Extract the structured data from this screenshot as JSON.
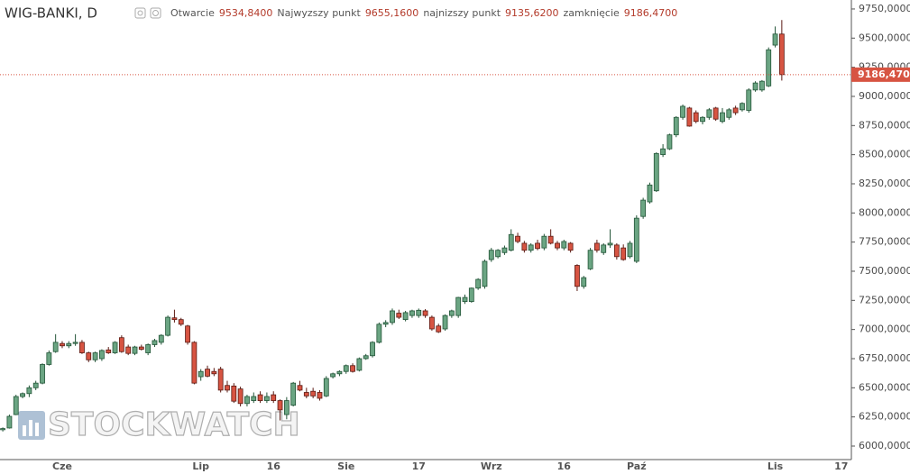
{
  "header": {
    "title": "WIG-BANKI, D",
    "items": [
      {
        "label": "Otwarcie",
        "value": "9534,8400"
      },
      {
        "label": "Najwyzszy punkt",
        "value": "9655,1600"
      },
      {
        "label": "najnizszy punkt",
        "value": "9135,6200"
      },
      {
        "label": "zamknięcie",
        "value": "9186,4700"
      }
    ]
  },
  "watermark": "STOCKWATCH",
  "chart_data": {
    "type": "candlestick",
    "up_color": "#6ba583",
    "up_border": "#225437",
    "down_color": "#d75442",
    "down_border": "#5b1a13",
    "grid": false,
    "categories": [
      null,
      null,
      null,
      null,
      null,
      null,
      null,
      null,
      null,
      "Cze",
      null,
      null,
      null,
      null,
      null,
      null,
      null,
      null,
      null,
      null,
      null,
      null,
      null,
      null,
      null,
      null,
      null,
      null,
      null,
      null,
      "Lip",
      null,
      null,
      null,
      null,
      null,
      null,
      null,
      null,
      null,
      null,
      "16",
      null,
      null,
      null,
      null,
      null,
      null,
      null,
      null,
      null,
      null,
      "Sie",
      null,
      null,
      null,
      null,
      null,
      null,
      null,
      null,
      null,
      null,
      "17",
      null,
      null,
      null,
      null,
      null,
      null,
      null,
      null,
      null,
      null,
      "Wrz",
      null,
      null,
      null,
      null,
      null,
      null,
      null,
      null,
      null,
      null,
      "16",
      null,
      null,
      null,
      null,
      null,
      null,
      null,
      null,
      null,
      null,
      "Paź",
      null,
      null,
      null,
      null,
      null,
      null,
      null,
      null,
      null,
      null,
      null,
      null,
      null,
      null,
      null,
      null,
      null,
      null,
      null,
      null,
      "Lis",
      null,
      null,
      null,
      null,
      null,
      null,
      null,
      null,
      null,
      "17"
    ],
    "open": [
      6140,
      6155,
      6270,
      6425,
      6450,
      6500,
      6540,
      6700,
      6810,
      6880,
      6860,
      6880,
      6890,
      6800,
      6740,
      6750,
      6825,
      6800,
      6930,
      6850,
      6795,
      6850,
      6800,
      6870,
      6890,
      6950,
      7100,
      7085,
      7030,
      6890,
      6595,
      6660,
      6640,
      6660,
      6520,
      6515,
      6490,
      6365,
      6390,
      6440,
      6390,
      6440,
      6390,
      6270,
      6350,
      6520,
      6460,
      6470,
      6460,
      6430,
      6595,
      6620,
      6640,
      6690,
      6650,
      6750,
      6775,
      6890,
      7045,
      7060,
      7140,
      7085,
      7120,
      7120,
      7160,
      7105,
      7030,
      7005,
      7120,
      7120,
      7240,
      7240,
      7355,
      7370,
      7600,
      7625,
      7660,
      7680,
      7800,
      7740,
      7680,
      7740,
      7700,
      7800,
      7740,
      7700,
      7740,
      7550,
      7370,
      7520,
      7740,
      7660,
      7725,
      7725,
      7700,
      7625,
      7585,
      7970,
      8095,
      8190,
      8500,
      8550,
      8670,
      8820,
      8900,
      8860,
      8785,
      8820,
      8900,
      8785,
      8820,
      8900,
      8885,
      8880,
      9055,
      9055,
      9090,
      9440,
      9534.84,
      null,
      null,
      null,
      null,
      null,
      null,
      null,
      null,
      null
    ],
    "high": [
      6160,
      6270,
      6440,
      6460,
      6520,
      6560,
      6710,
      6820,
      6960,
      6900,
      6900,
      6960,
      6910,
      6810,
      6810,
      6830,
      6850,
      6900,
      6950,
      6870,
      6860,
      6870,
      6880,
      6920,
      6960,
      7120,
      7170,
      7100,
      7040,
      6900,
      6660,
      6690,
      6670,
      6680,
      6560,
      6540,
      6510,
      6440,
      6460,
      6470,
      6460,
      6470,
      6400,
      6420,
      6550,
      6560,
      6500,
      6500,
      6480,
      6600,
      6630,
      6650,
      6700,
      6710,
      6760,
      6790,
      6900,
      7060,
      7080,
      7180,
      7170,
      7160,
      7170,
      7180,
      7175,
      7120,
      7050,
      7130,
      7170,
      7280,
      7300,
      7360,
      7440,
      7600,
      7700,
      7690,
      7720,
      7860,
      7830,
      7760,
      7740,
      7770,
      7820,
      7860,
      7760,
      7770,
      7750,
      7560,
      7460,
      7700,
      7770,
      7740,
      7860,
      7740,
      7730,
      7760,
      7980,
      8130,
      8260,
      8520,
      8590,
      8680,
      8830,
      8930,
      8910,
      8880,
      8830,
      8900,
      8910,
      8900,
      8900,
      8920,
      8950,
      9070,
      9130,
      9140,
      9420,
      9600,
      9655.16,
      null,
      null,
      null,
      null,
      null,
      null,
      null,
      null,
      null
    ],
    "low": [
      6125,
      6150,
      6265,
      6410,
      6420,
      6480,
      6530,
      6690,
      6800,
      6840,
      6840,
      6860,
      6790,
      6720,
      6720,
      6730,
      6790,
      6790,
      6800,
      6780,
      6780,
      6820,
      6780,
      6850,
      6870,
      6940,
      7060,
      7030,
      6870,
      6530,
      6560,
      6590,
      6600,
      6460,
      6460,
      6370,
      6340,
      6340,
      6370,
      6370,
      6370,
      6370,
      6220,
      6230,
      6340,
      6470,
      6410,
      6410,
      6390,
      6420,
      6580,
      6600,
      6620,
      6630,
      6640,
      6740,
      6760,
      6880,
      7020,
      7040,
      7090,
      7070,
      7100,
      7100,
      7100,
      6990,
      6970,
      6990,
      7100,
      7100,
      7220,
      7230,
      7340,
      7350,
      7580,
      7610,
      7640,
      7670,
      7740,
      7660,
      7660,
      7680,
      7680,
      7730,
      7680,
      7680,
      7660,
      7330,
      7350,
      7510,
      7660,
      7640,
      7700,
      7600,
      7590,
      7610,
      7570,
      7950,
      8080,
      8180,
      8480,
      8540,
      8650,
      8800,
      8740,
      8770,
      8760,
      8800,
      8790,
      8770,
      8800,
      8840,
      8870,
      8860,
      9040,
      9040,
      9080,
      9420,
      9135.62,
      null,
      null,
      null,
      null,
      null,
      null,
      null,
      null,
      null
    ],
    "close": [
      6150,
      6255,
      6425,
      6450,
      6500,
      6540,
      6700,
      6800,
      6890,
      6860,
      6880,
      6890,
      6800,
      6740,
      6800,
      6820,
      6800,
      6890,
      6810,
      6795,
      6850,
      6830,
      6870,
      6905,
      6950,
      7105,
      7085,
      7045,
      6890,
      6540,
      6640,
      6600,
      6620,
      6480,
      6480,
      6385,
      6365,
      6425,
      6425,
      6390,
      6425,
      6390,
      6310,
      6390,
      6540,
      6480,
      6430,
      6430,
      6410,
      6580,
      6620,
      6640,
      6690,
      6640,
      6750,
      6775,
      6890,
      7045,
      7060,
      7160,
      7105,
      7145,
      7160,
      7165,
      7120,
      7005,
      6980,
      7120,
      7160,
      7275,
      7275,
      7355,
      7430,
      7585,
      7680,
      7680,
      7700,
      7815,
      7755,
      7680,
      7725,
      7695,
      7800,
      7740,
      7700,
      7755,
      7680,
      7370,
      7445,
      7680,
      7680,
      7725,
      7740,
      7625,
      7600,
      7740,
      7955,
      8110,
      8240,
      8510,
      8550,
      8670,
      8820,
      8915,
      8745,
      8785,
      8820,
      8885,
      8805,
      8860,
      8885,
      8860,
      8940,
      9055,
      9115,
      9130,
      9400,
      9535,
      9186.47,
      null,
      null,
      null,
      null,
      null,
      null,
      null,
      null,
      null
    ],
    "ylim": [
      5884,
      9827
    ],
    "yticks": [
      {
        "value": 6000,
        "label": "6000,0000"
      },
      {
        "value": 6250,
        "label": "6250,0000"
      },
      {
        "value": 6500,
        "label": "6500,0000"
      },
      {
        "value": 6750,
        "label": "6750,0000"
      },
      {
        "value": 7000,
        "label": "7000,0000"
      },
      {
        "value": 7250,
        "label": "7250,0000"
      },
      {
        "value": 7500,
        "label": "7500,0000"
      },
      {
        "value": 7750,
        "label": "7750,0000"
      },
      {
        "value": 8000,
        "label": "8000,0000"
      },
      {
        "value": 8250,
        "label": "8250,0000"
      },
      {
        "value": 8500,
        "label": "8500,0000"
      },
      {
        "value": 8750,
        "label": "8750,0000"
      },
      {
        "value": 9000,
        "label": "9000,0000"
      },
      {
        "value": 9250,
        "label": "9250,0000"
      },
      {
        "value": 9500,
        "label": "9500,0000"
      },
      {
        "value": 9750,
        "label": "9750,0000"
      }
    ],
    "last_price": {
      "value": 9186.47,
      "label": "9186,4700"
    }
  }
}
